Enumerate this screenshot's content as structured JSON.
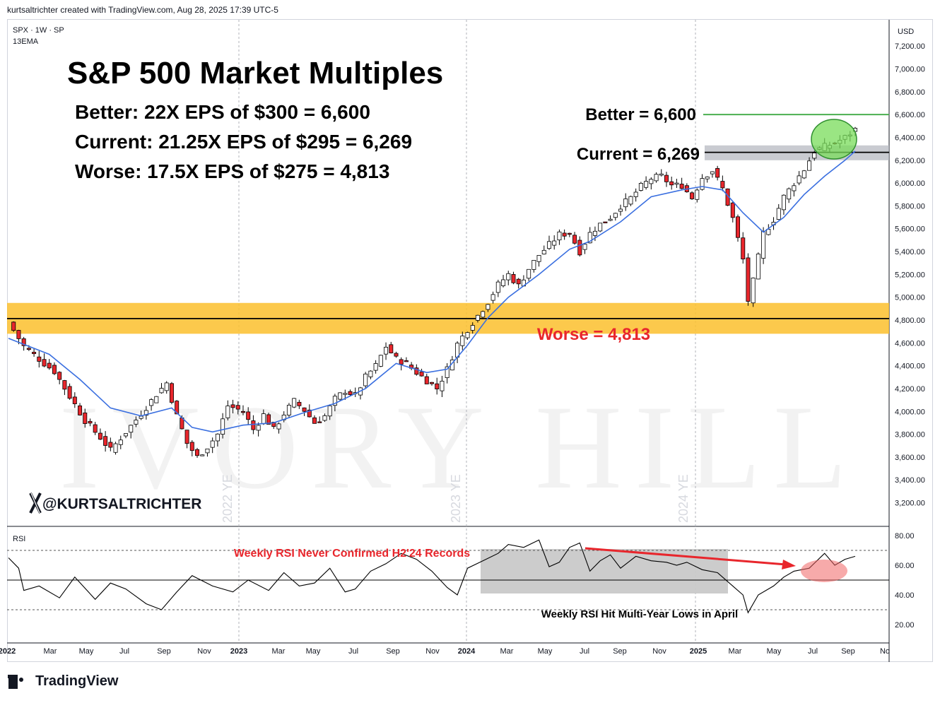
{
  "header": "kurtsaltrichter created with TradingView.com, Aug 28, 2025 17:39 UTC-5",
  "symbol_line": "SPX · 1W · SP",
  "indicator_line": "13EMA",
  "currency": "USD",
  "title": "S&P 500 Market Multiples",
  "scenarios": [
    "Better: 22X EPS of $300 = 6,600",
    "Current: 21.25X EPS of $295 = 6,269",
    "Worse: 17.5X EPS of $275 = 4,813"
  ],
  "annotations": {
    "better": "Better = 6,600",
    "current": "Current = 6,269",
    "worse": "Worse = 4,813",
    "rsi_top": "Weekly RSI Never Confirmed H2'24 Records",
    "rsi_bottom": "Weekly RSI Hit Multi-Year Lows in April",
    "handle": "@KURTSALTRICHTER",
    "ye_2022": "2022 YE",
    "ye_2023": "2023 YE",
    "ye_2024": "2024 YE",
    "rsi_label": "RSI"
  },
  "footer": "TradingView",
  "colors": {
    "up": "#ffffff",
    "down": "#e8262c",
    "ema": "#3a6fe0",
    "better_line": "#4caf50",
    "worse_band": "#fbc02d",
    "current_band": "#b2b5be",
    "annotation_red": "#e8262c"
  },
  "chart_data": {
    "type": "candlestick",
    "price_axis": {
      "ticks": [
        "7,200.00",
        "7,000.00",
        "6,800.00",
        "6,600.00",
        "6,400.00",
        "6,200.00",
        "6,000.00",
        "5,800.00",
        "5,600.00",
        "5,400.00",
        "5,200.00",
        "5,000.00",
        "4,800.00",
        "4,600.00",
        "4,400.00",
        "4,200.00",
        "4,000.00",
        "3,800.00",
        "3,600.00",
        "3,400.00",
        "3,200.00"
      ]
    },
    "time_axis": [
      "2022",
      "Mar",
      "May",
      "Jul",
      "Sep",
      "Nov",
      "2023",
      "Mar",
      "May",
      "Jul",
      "Sep",
      "Nov",
      "2024",
      "Mar",
      "May",
      "Jul",
      "Sep",
      "Nov",
      "2025",
      "Mar",
      "May",
      "Jul",
      "Sep",
      "No"
    ],
    "year_labels": [
      "2022",
      "2023",
      "2024",
      "2025"
    ],
    "close_path": [
      [
        0,
        4780
      ],
      [
        3,
        4570
      ],
      [
        7,
        4420
      ],
      [
        9,
        4350
      ],
      [
        12,
        4130
      ],
      [
        15,
        3920
      ],
      [
        18,
        3770
      ],
      [
        20,
        3660
      ],
      [
        23,
        3820
      ],
      [
        26,
        3980
      ],
      [
        29,
        4150
      ],
      [
        31,
        4250
      ],
      [
        33,
        3960
      ],
      [
        35,
        3720
      ],
      [
        37,
        3600
      ],
      [
        39,
        3690
      ],
      [
        41,
        3800
      ],
      [
        43,
        4050
      ],
      [
        46,
        4000
      ],
      [
        48,
        3840
      ],
      [
        50,
        3970
      ],
      [
        52,
        3840
      ],
      [
        54,
        3980
      ],
      [
        56,
        4090
      ],
      [
        58,
        4010
      ],
      [
        60,
        3900
      ],
      [
        62,
        3960
      ],
      [
        64,
        4110
      ],
      [
        66,
        4180
      ],
      [
        68,
        4140
      ],
      [
        70,
        4300
      ],
      [
        72,
        4400
      ],
      [
        74,
        4570
      ],
      [
        76,
        4460
      ],
      [
        78,
        4420
      ],
      [
        80,
        4340
      ],
      [
        82,
        4270
      ],
      [
        84,
        4200
      ],
      [
        86,
        4370
      ],
      [
        88,
        4590
      ],
      [
        90,
        4720
      ],
      [
        92,
        4840
      ],
      [
        94,
        4960
      ],
      [
        96,
        5110
      ],
      [
        98,
        5200
      ],
      [
        100,
        5100
      ],
      [
        102,
        5250
      ],
      [
        104,
        5370
      ],
      [
        106,
        5460
      ],
      [
        108,
        5550
      ],
      [
        110,
        5560
      ],
      [
        112,
        5400
      ],
      [
        114,
        5560
      ],
      [
        116,
        5640
      ],
      [
        118,
        5700
      ],
      [
        120,
        5800
      ],
      [
        122,
        5870
      ],
      [
        124,
        5970
      ],
      [
        126,
        6040
      ],
      [
        128,
        6060
      ],
      [
        130,
        5980
      ],
      [
        132,
        5980
      ],
      [
        134,
        5870
      ],
      [
        136,
        6050
      ],
      [
        138,
        6110
      ],
      [
        140,
        5950
      ],
      [
        142,
        5690
      ],
      [
        144,
        5330
      ],
      [
        145,
        4970
      ],
      [
        146,
        5140
      ],
      [
        148,
        5560
      ],
      [
        150,
        5680
      ],
      [
        152,
        5880
      ],
      [
        154,
        6000
      ],
      [
        156,
        6120
      ],
      [
        158,
        6280
      ],
      [
        160,
        6320
      ],
      [
        162,
        6350
      ],
      [
        164,
        6400
      ],
      [
        166,
        6470
      ]
    ],
    "ema13": [
      [
        0,
        4640
      ],
      [
        8,
        4500
      ],
      [
        14,
        4280
      ],
      [
        20,
        4030
      ],
      [
        26,
        3960
      ],
      [
        32,
        4030
      ],
      [
        36,
        3860
      ],
      [
        40,
        3820
      ],
      [
        46,
        3880
      ],
      [
        52,
        3900
      ],
      [
        58,
        3990
      ],
      [
        64,
        4070
      ],
      [
        70,
        4200
      ],
      [
        76,
        4420
      ],
      [
        82,
        4340
      ],
      [
        86,
        4370
      ],
      [
        90,
        4580
      ],
      [
        94,
        4820
      ],
      [
        98,
        5000
      ],
      [
        104,
        5200
      ],
      [
        110,
        5420
      ],
      [
        114,
        5490
      ],
      [
        120,
        5660
      ],
      [
        126,
        5880
      ],
      [
        132,
        5940
      ],
      [
        136,
        5970
      ],
      [
        140,
        5940
      ],
      [
        144,
        5740
      ],
      [
        148,
        5570
      ],
      [
        152,
        5700
      ],
      [
        156,
        5900
      ],
      [
        160,
        6060
      ],
      [
        164,
        6200
      ],
      [
        166,
        6280
      ]
    ],
    "levels": {
      "better": 6600,
      "current": 6269,
      "worse": 4813,
      "current_band": [
        6200,
        6330
      ],
      "worse_band": [
        4680,
        4950
      ]
    },
    "rsi": {
      "axis_ticks": [
        "80.00",
        "60.00",
        "40.00",
        "20.00"
      ],
      "overbought": 70,
      "mid": 50,
      "oversold": 30,
      "values": [
        [
          0,
          65
        ],
        [
          2,
          58
        ],
        [
          3,
          43
        ],
        [
          6,
          46
        ],
        [
          10,
          38
        ],
        [
          13,
          52
        ],
        [
          17,
          37
        ],
        [
          20,
          48
        ],
        [
          23,
          44
        ],
        [
          27,
          34
        ],
        [
          30,
          30
        ],
        [
          33,
          42
        ],
        [
          36,
          53
        ],
        [
          40,
          46
        ],
        [
          44,
          42
        ],
        [
          47,
          50
        ],
        [
          51,
          43
        ],
        [
          54,
          55
        ],
        [
          57,
          46
        ],
        [
          60,
          48
        ],
        [
          63,
          58
        ],
        [
          66,
          42
        ],
        [
          68,
          44
        ],
        [
          71,
          56
        ],
        [
          74,
          61
        ],
        [
          77,
          68
        ],
        [
          80,
          64
        ],
        [
          83,
          56
        ],
        [
          86,
          45
        ],
        [
          88,
          40
        ],
        [
          90,
          58
        ],
        [
          93,
          63
        ],
        [
          96,
          68
        ],
        [
          98,
          74
        ],
        [
          101,
          72
        ],
        [
          104,
          77
        ],
        [
          106,
          59
        ],
        [
          108,
          62
        ],
        [
          110,
          72
        ],
        [
          112,
          75
        ],
        [
          114,
          56
        ],
        [
          116,
          63
        ],
        [
          118,
          67
        ],
        [
          120,
          58
        ],
        [
          123,
          66
        ],
        [
          126,
          63
        ],
        [
          129,
          62
        ],
        [
          131,
          60
        ],
        [
          133,
          62
        ],
        [
          136,
          57
        ],
        [
          139,
          55
        ],
        [
          142,
          46
        ],
        [
          144,
          40
        ],
        [
          145,
          28
        ],
        [
          147,
          40
        ],
        [
          150,
          46
        ],
        [
          152,
          52
        ],
        [
          154,
          56
        ],
        [
          157,
          58
        ],
        [
          160,
          68
        ],
        [
          162,
          60
        ],
        [
          164,
          64
        ],
        [
          166,
          66
        ]
      ]
    }
  }
}
